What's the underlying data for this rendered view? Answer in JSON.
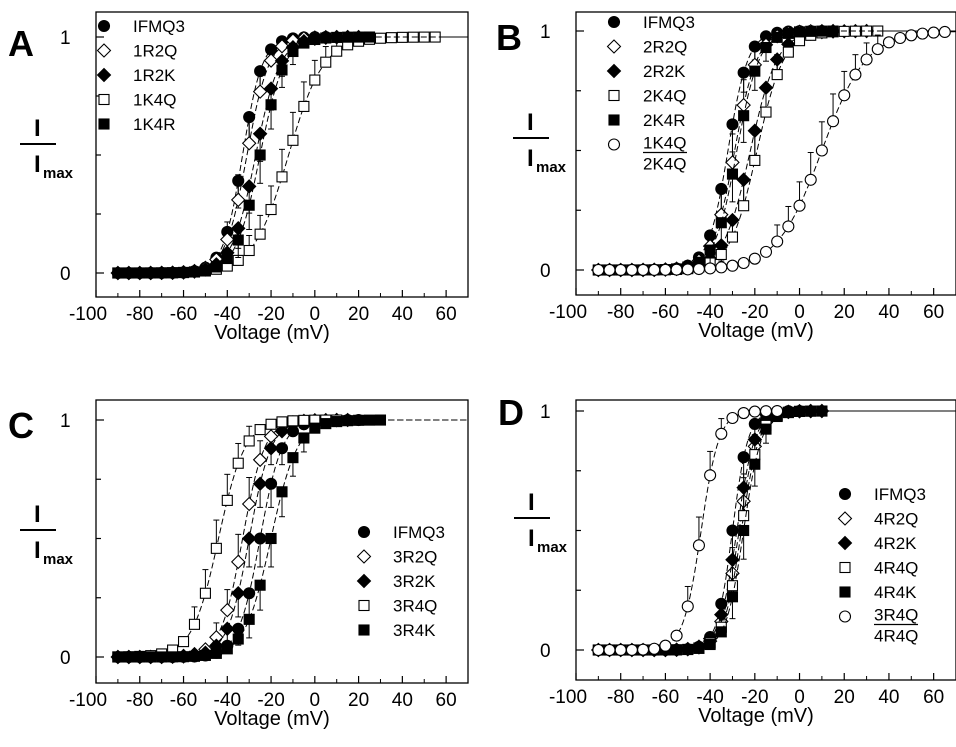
{
  "figure": {
    "y_label_top": "I",
    "y_label_bottom": "I",
    "y_label_sub": "max"
  },
  "chart_data": [
    {
      "panel": "A",
      "type": "scatter",
      "xlabel": "Voltage (mV)",
      "xlim": [
        -100,
        70
      ],
      "xticks": [
        -100,
        -80,
        -60,
        -40,
        -20,
        0,
        20,
        40,
        60
      ],
      "xticklabels": [
        "-100",
        "-80",
        "-60",
        "-40",
        "-20",
        "0",
        "20",
        "40",
        "60"
      ],
      "ylim": [
        0,
        1
      ],
      "yticklabels": [
        "0",
        "1"
      ],
      "grid": false,
      "legend": "top-left",
      "fits": "dashed Boltzmann curves",
      "series": [
        {
          "name": "IFMQ3",
          "marker": "filled-circle",
          "v_half": -33,
          "slope": 4.5
        },
        {
          "name": "1R2Q",
          "marker": "open-diamond",
          "v_half": -31,
          "slope": 5
        },
        {
          "name": "1R2K",
          "marker": "filled-diamond",
          "v_half": -27,
          "slope": 5.5
        },
        {
          "name": "1K4Q",
          "marker": "open-square",
          "v_half": -12,
          "slope": 8
        },
        {
          "name": "1K4R",
          "marker": "filled-square",
          "v_half": -25,
          "slope": 5.5
        }
      ]
    },
    {
      "panel": "B",
      "type": "scatter",
      "xlabel": "Voltage (mV)",
      "xlim": [
        -100,
        70
      ],
      "xticks": [
        -100,
        -80,
        -60,
        -40,
        -20,
        0,
        20,
        40,
        60
      ],
      "xticklabels": [
        "-100",
        "-80",
        "-60",
        "-40",
        "-20",
        "0",
        "20",
        "40",
        "60"
      ],
      "ylim": [
        0,
        1
      ],
      "yticklabels": [
        "0",
        "1"
      ],
      "grid": false,
      "legend": "top-left",
      "fits": "dashed Boltzmann curves",
      "series": [
        {
          "name": "IFMQ3",
          "marker": "filled-circle",
          "v_half": -32,
          "slope": 4.5
        },
        {
          "name": "2R2Q",
          "marker": "open-diamond",
          "v_half": -29,
          "slope": 5
        },
        {
          "name": "2R2K",
          "marker": "filled-diamond",
          "v_half": -22,
          "slope": 6
        },
        {
          "name": "2K4Q",
          "marker": "open-square",
          "v_half": -19,
          "slope": 6
        },
        {
          "name": "2K4R",
          "marker": "filled-square",
          "v_half": -28,
          "slope": 5
        },
        {
          "name": "1K4Q/2K4Q",
          "name_top": "1K4Q",
          "name_bottom": "2K4Q",
          "marker": "open-circle",
          "v_half": 10,
          "slope": 10
        }
      ]
    },
    {
      "panel": "C",
      "type": "scatter",
      "xlabel": "Voltage (mV)",
      "xlim": [
        -100,
        70
      ],
      "xticks": [
        -100,
        -80,
        -60,
        -40,
        -20,
        0,
        20,
        40,
        60
      ],
      "xticklabels": [
        "-100",
        "-80",
        "-60",
        "-40",
        "-20",
        "0",
        "20",
        "40",
        "60"
      ],
      "ylim": [
        0,
        1
      ],
      "yticklabels": [
        "0",
        "1"
      ],
      "grid": false,
      "legend": "bottom-right",
      "fits": "dashed Boltzmann curves",
      "series": [
        {
          "name": "IFMQ3",
          "marker": "filled-circle",
          "v_half": -25,
          "slope": 5
        },
        {
          "name": "3R2Q",
          "marker": "open-diamond",
          "v_half": -33,
          "slope": 5
        },
        {
          "name": "3R2K",
          "marker": "filled-diamond",
          "v_half": -30,
          "slope": 5
        },
        {
          "name": "3R4Q",
          "marker": "open-square",
          "v_half": -44,
          "slope": 6
        },
        {
          "name": "3R4K",
          "marker": "filled-square",
          "v_half": -20,
          "slope": 6
        }
      ]
    },
    {
      "panel": "D",
      "type": "scatter",
      "xlabel": "Voltage (mV)",
      "xlim": [
        -100,
        70
      ],
      "xticks": [
        -100,
        -80,
        -60,
        -40,
        -20,
        0,
        20,
        40,
        60
      ],
      "xticklabels": [
        "-100",
        "-80",
        "-60",
        "-40",
        "-20",
        "0",
        "20",
        "40",
        "60"
      ],
      "ylim": [
        0,
        1
      ],
      "yticklabels": [
        "0",
        "1"
      ],
      "grid": false,
      "legend": "bottom-right",
      "fits": "dashed Boltzmann curves",
      "series": [
        {
          "name": "IFMQ3",
          "marker": "filled-circle",
          "v_half": -30,
          "slope": 3.5
        },
        {
          "name": "4R2Q",
          "marker": "open-diamond",
          "v_half": -27,
          "slope": 4
        },
        {
          "name": "4R2K",
          "marker": "filled-diamond",
          "v_half": -28,
          "slope": 4
        },
        {
          "name": "4R4Q",
          "marker": "open-square",
          "v_half": -26,
          "slope": 4
        },
        {
          "name": "4R4K",
          "marker": "filled-square",
          "v_half": -25,
          "slope": 4
        },
        {
          "name": "3R4Q/4R4Q",
          "name_top": "3R4Q",
          "name_bottom": "4R4Q",
          "marker": "open-circle",
          "v_half": -44,
          "slope": 4
        }
      ]
    }
  ]
}
